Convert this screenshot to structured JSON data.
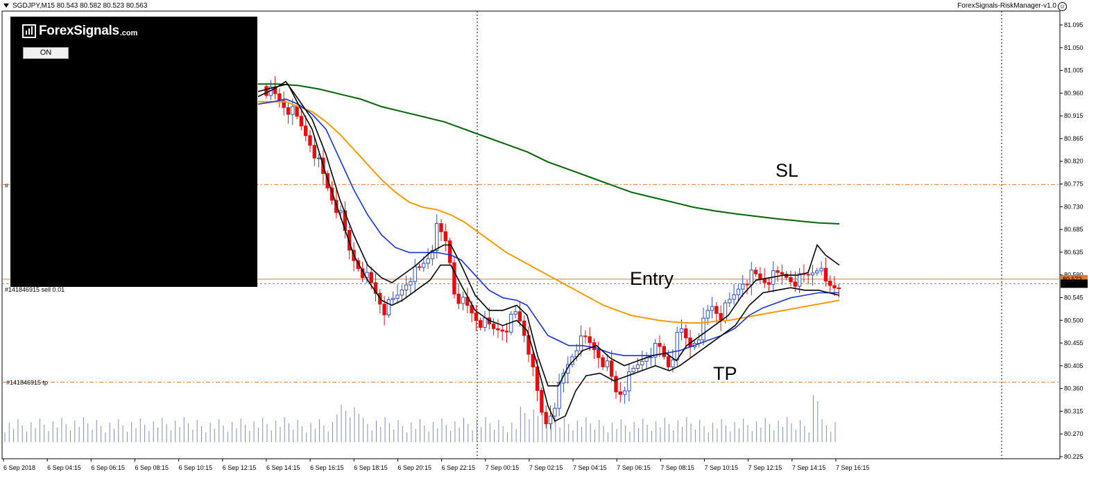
{
  "header": {
    "symbol_info": "SGDJPY,M15  80.543 80.582 80.523 80.563",
    "ea_name": "ForexSignals-RiskManager-v1.0"
  },
  "panel": {
    "logo_text": "ForexSignals",
    "logo_suffix": ".com",
    "toggle_label": "ON"
  },
  "annotations": {
    "sl": "SL",
    "entry": "Entry",
    "tp": "TP"
  },
  "orders": {
    "tp_label": "#141846915 tp",
    "entry_label": "#141846915 sell 0.01",
    "sl_label": "#"
  },
  "price_axis": {
    "ticks": [
      "81.095",
      "81.050",
      "81.005",
      "80.960",
      "80.915",
      "80.865",
      "80.820",
      "80.775",
      "80.730",
      "80.685",
      "80.635",
      "80.590",
      "80.545",
      "80.500",
      "80.455",
      "80.405",
      "80.360",
      "80.315",
      "80.270",
      "80.225"
    ],
    "entry_price_tag": "80.572",
    "current_price_tag": "80.563"
  },
  "time_axis": {
    "ticks": [
      "6 Sep 2018",
      "6 Sep 04:15",
      "6 Sep 06:15",
      "6 Sep 08:15",
      "6 Sep 10:15",
      "6 Sep 12:15",
      "6 Sep 14:15",
      "6 Sep 16:15",
      "6 Sep 18:15",
      "6 Sep 20:15",
      "6 Sep 22:15",
      "7 Sep 00:15",
      "7 Sep 02:15",
      "7 Sep 04:15",
      "7 Sep 06:15",
      "7 Sep 08:15",
      "7 Sep 10:15",
      "7 Sep 12:15",
      "7 Sep 14:15",
      "7 Sep 16:15"
    ]
  },
  "colors": {
    "bull": "#2e4fbf",
    "bear": "#e01010",
    "ema_fast": "#000000",
    "ema_mid": "#1030e0",
    "ema_slow": "#ff9900",
    "ema_long": "#006400",
    "order_level": "#e07830",
    "volume": "#7f8fb8"
  },
  "chart_data": {
    "type": "candlestick",
    "symbol": "SGDJPY",
    "timeframe": "M15",
    "levels": {
      "sl": 80.76,
      "entry": 80.572,
      "tp": 80.367,
      "current": 80.563
    },
    "ylim": [
      80.21,
      81.11
    ],
    "price_anchor": [
      [
        381,
        80.955
      ],
      [
        420,
        80.905
      ],
      [
        450,
        80.84
      ],
      [
        470,
        80.76
      ],
      [
        490,
        80.7
      ],
      [
        505,
        80.62
      ],
      [
        520,
        80.595
      ],
      [
        535,
        80.56
      ],
      [
        555,
        80.51
      ],
      [
        570,
        80.53
      ],
      [
        590,
        80.58
      ],
      [
        605,
        80.59
      ],
      [
        620,
        80.625
      ],
      [
        630,
        80.67
      ],
      [
        645,
        80.64
      ],
      [
        655,
        80.55
      ],
      [
        670,
        80.52
      ],
      [
        690,
        80.49
      ],
      [
        710,
        80.47
      ],
      [
        730,
        80.48
      ],
      [
        745,
        80.505
      ],
      [
        760,
        80.45
      ],
      [
        770,
        80.37
      ],
      [
        785,
        80.28
      ],
      [
        800,
        80.33
      ],
      [
        815,
        80.39
      ],
      [
        830,
        80.44
      ],
      [
        845,
        80.45
      ],
      [
        860,
        80.43
      ],
      [
        875,
        80.4
      ],
      [
        890,
        80.34
      ],
      [
        905,
        80.37
      ],
      [
        920,
        80.4
      ],
      [
        935,
        80.43
      ],
      [
        950,
        80.435
      ],
      [
        965,
        80.4
      ],
      [
        980,
        80.47
      ],
      [
        995,
        80.44
      ],
      [
        1010,
        80.47
      ],
      [
        1025,
        80.52
      ],
      [
        1040,
        80.5
      ],
      [
        1055,
        80.53
      ],
      [
        1070,
        80.57
      ],
      [
        1085,
        80.58
      ],
      [
        1100,
        80.57
      ],
      [
        1115,
        80.575
      ],
      [
        1130,
        80.58
      ],
      [
        1150,
        80.57
      ],
      [
        1165,
        80.58
      ],
      [
        1178,
        80.6
      ],
      [
        1190,
        80.56
      ],
      [
        1200,
        80.555
      ],
      [
        1210,
        80.563
      ]
    ],
    "ema_fast": [
      [
        372,
        80.945
      ],
      [
        400,
        80.955
      ],
      [
        415,
        80.96
      ],
      [
        430,
        80.92
      ],
      [
        450,
        80.87
      ],
      [
        470,
        80.78
      ],
      [
        490,
        80.7
      ],
      [
        510,
        80.62
      ],
      [
        530,
        80.57
      ],
      [
        550,
        80.53
      ],
      [
        565,
        80.52
      ],
      [
        580,
        80.53
      ],
      [
        600,
        80.55
      ],
      [
        620,
        80.57
      ],
      [
        635,
        80.6
      ],
      [
        650,
        80.6
      ],
      [
        665,
        80.56
      ],
      [
        685,
        80.51
      ],
      [
        705,
        80.49
      ],
      [
        725,
        80.48
      ],
      [
        745,
        80.49
      ],
      [
        760,
        80.47
      ],
      [
        775,
        80.4
      ],
      [
        790,
        80.32
      ],
      [
        800,
        80.29
      ],
      [
        815,
        80.3
      ],
      [
        830,
        80.35
      ],
      [
        845,
        80.38
      ],
      [
        865,
        80.385
      ],
      [
        885,
        80.37
      ],
      [
        905,
        80.38
      ],
      [
        925,
        80.39
      ],
      [
        945,
        80.4
      ],
      [
        965,
        80.39
      ],
      [
        980,
        80.4
      ],
      [
        1000,
        80.42
      ],
      [
        1020,
        80.44
      ],
      [
        1040,
        80.46
      ],
      [
        1060,
        80.48
      ],
      [
        1080,
        80.52
      ],
      [
        1100,
        80.545
      ],
      [
        1120,
        80.55
      ],
      [
        1140,
        80.555
      ],
      [
        1160,
        80.55
      ],
      [
        1180,
        80.55
      ],
      [
        1195,
        80.545
      ],
      [
        1210,
        80.54
      ]
    ],
    "ema_med": [
      [
        372,
        80.935
      ],
      [
        395,
        80.95
      ],
      [
        412,
        80.965
      ],
      [
        430,
        80.93
      ],
      [
        450,
        80.89
      ],
      [
        470,
        80.82
      ],
      [
        490,
        80.73
      ],
      [
        510,
        80.66
      ],
      [
        530,
        80.6
      ],
      [
        550,
        80.575
      ],
      [
        565,
        80.565
      ],
      [
        580,
        80.58
      ],
      [
        600,
        80.6
      ],
      [
        620,
        80.625
      ],
      [
        640,
        80.64
      ],
      [
        650,
        80.64
      ],
      [
        665,
        80.6
      ],
      [
        685,
        80.54
      ],
      [
        705,
        80.51
      ],
      [
        725,
        80.51
      ],
      [
        745,
        80.52
      ],
      [
        760,
        80.5
      ],
      [
        775,
        80.42
      ],
      [
        790,
        80.36
      ],
      [
        805,
        80.36
      ],
      [
        820,
        80.4
      ],
      [
        840,
        80.43
      ],
      [
        860,
        80.44
      ],
      [
        880,
        80.415
      ],
      [
        900,
        80.4
      ],
      [
        920,
        80.41
      ],
      [
        940,
        80.42
      ],
      [
        960,
        80.425
      ],
      [
        975,
        80.41
      ],
      [
        990,
        80.44
      ],
      [
        1010,
        80.46
      ],
      [
        1030,
        80.48
      ],
      [
        1050,
        80.5
      ],
      [
        1070,
        80.54
      ],
      [
        1090,
        80.57
      ],
      [
        1110,
        80.575
      ],
      [
        1130,
        80.58
      ],
      [
        1150,
        80.58
      ],
      [
        1165,
        80.585
      ],
      [
        1178,
        80.64
      ],
      [
        1190,
        80.62
      ],
      [
        1210,
        80.6
      ]
    ],
    "ema_blue": [
      [
        372,
        80.92
      ],
      [
        395,
        80.925
      ],
      [
        412,
        80.93
      ],
      [
        430,
        80.92
      ],
      [
        450,
        80.9
      ],
      [
        470,
        80.87
      ],
      [
        490,
        80.81
      ],
      [
        510,
        80.75
      ],
      [
        530,
        80.7
      ],
      [
        550,
        80.66
      ],
      [
        570,
        80.635
      ],
      [
        590,
        80.625
      ],
      [
        610,
        80.625
      ],
      [
        630,
        80.625
      ],
      [
        650,
        80.62
      ],
      [
        665,
        80.61
      ],
      [
        685,
        80.58
      ],
      [
        705,
        80.55
      ],
      [
        725,
        80.535
      ],
      [
        745,
        80.53
      ],
      [
        760,
        80.52
      ],
      [
        775,
        80.49
      ],
      [
        790,
        80.46
      ],
      [
        805,
        80.45
      ],
      [
        820,
        80.44
      ],
      [
        840,
        80.44
      ],
      [
        860,
        80.435
      ],
      [
        880,
        80.425
      ],
      [
        900,
        80.42
      ],
      [
        920,
        80.42
      ],
      [
        940,
        80.42
      ],
      [
        960,
        80.425
      ],
      [
        980,
        80.43
      ],
      [
        1000,
        80.44
      ],
      [
        1020,
        80.45
      ],
      [
        1040,
        80.46
      ],
      [
        1060,
        80.475
      ],
      [
        1080,
        80.5
      ],
      [
        1100,
        80.515
      ],
      [
        1120,
        80.525
      ],
      [
        1140,
        80.535
      ],
      [
        1160,
        80.54
      ],
      [
        1180,
        80.545
      ],
      [
        1200,
        80.545
      ],
      [
        1210,
        80.545
      ]
    ],
    "ema_orange": [
      [
        372,
        80.925
      ],
      [
        395,
        80.925
      ],
      [
        412,
        80.925
      ],
      [
        430,
        80.915
      ],
      [
        450,
        80.905
      ],
      [
        470,
        80.885
      ],
      [
        490,
        80.86
      ],
      [
        510,
        80.83
      ],
      [
        530,
        80.8
      ],
      [
        550,
        80.77
      ],
      [
        570,
        80.745
      ],
      [
        590,
        80.725
      ],
      [
        610,
        80.715
      ],
      [
        630,
        80.71
      ],
      [
        650,
        80.7
      ],
      [
        670,
        80.685
      ],
      [
        690,
        80.665
      ],
      [
        710,
        80.645
      ],
      [
        730,
        80.625
      ],
      [
        750,
        80.61
      ],
      [
        770,
        80.595
      ],
      [
        790,
        80.58
      ],
      [
        810,
        80.565
      ],
      [
        830,
        80.55
      ],
      [
        850,
        80.535
      ],
      [
        870,
        80.52
      ],
      [
        890,
        80.51
      ],
      [
        910,
        80.5
      ],
      [
        930,
        80.495
      ],
      [
        950,
        80.49
      ],
      [
        970,
        80.487
      ],
      [
        990,
        80.485
      ],
      [
        1010,
        80.485
      ],
      [
        1030,
        80.488
      ],
      [
        1050,
        80.49
      ],
      [
        1070,
        80.495
      ],
      [
        1090,
        80.5
      ],
      [
        1110,
        80.505
      ],
      [
        1130,
        80.51
      ],
      [
        1150,
        80.515
      ],
      [
        1170,
        80.52
      ],
      [
        1190,
        80.525
      ],
      [
        1210,
        80.53
      ]
    ],
    "ema_green": [
      [
        372,
        80.96
      ],
      [
        400,
        80.96
      ],
      [
        430,
        80.957
      ],
      [
        460,
        80.95
      ],
      [
        490,
        80.94
      ],
      [
        520,
        80.93
      ],
      [
        550,
        80.915
      ],
      [
        580,
        80.905
      ],
      [
        610,
        80.895
      ],
      [
        640,
        80.885
      ],
      [
        670,
        80.87
      ],
      [
        700,
        80.855
      ],
      [
        730,
        80.84
      ],
      [
        760,
        80.825
      ],
      [
        790,
        80.805
      ],
      [
        820,
        80.79
      ],
      [
        850,
        80.775
      ],
      [
        880,
        80.76
      ],
      [
        910,
        80.745
      ],
      [
        940,
        80.735
      ],
      [
        970,
        80.725
      ],
      [
        1000,
        80.715
      ],
      [
        1030,
        80.708
      ],
      [
        1060,
        80.702
      ],
      [
        1090,
        80.697
      ],
      [
        1120,
        80.692
      ],
      [
        1150,
        80.688
      ],
      [
        1180,
        80.684
      ],
      [
        1210,
        80.682
      ]
    ]
  }
}
